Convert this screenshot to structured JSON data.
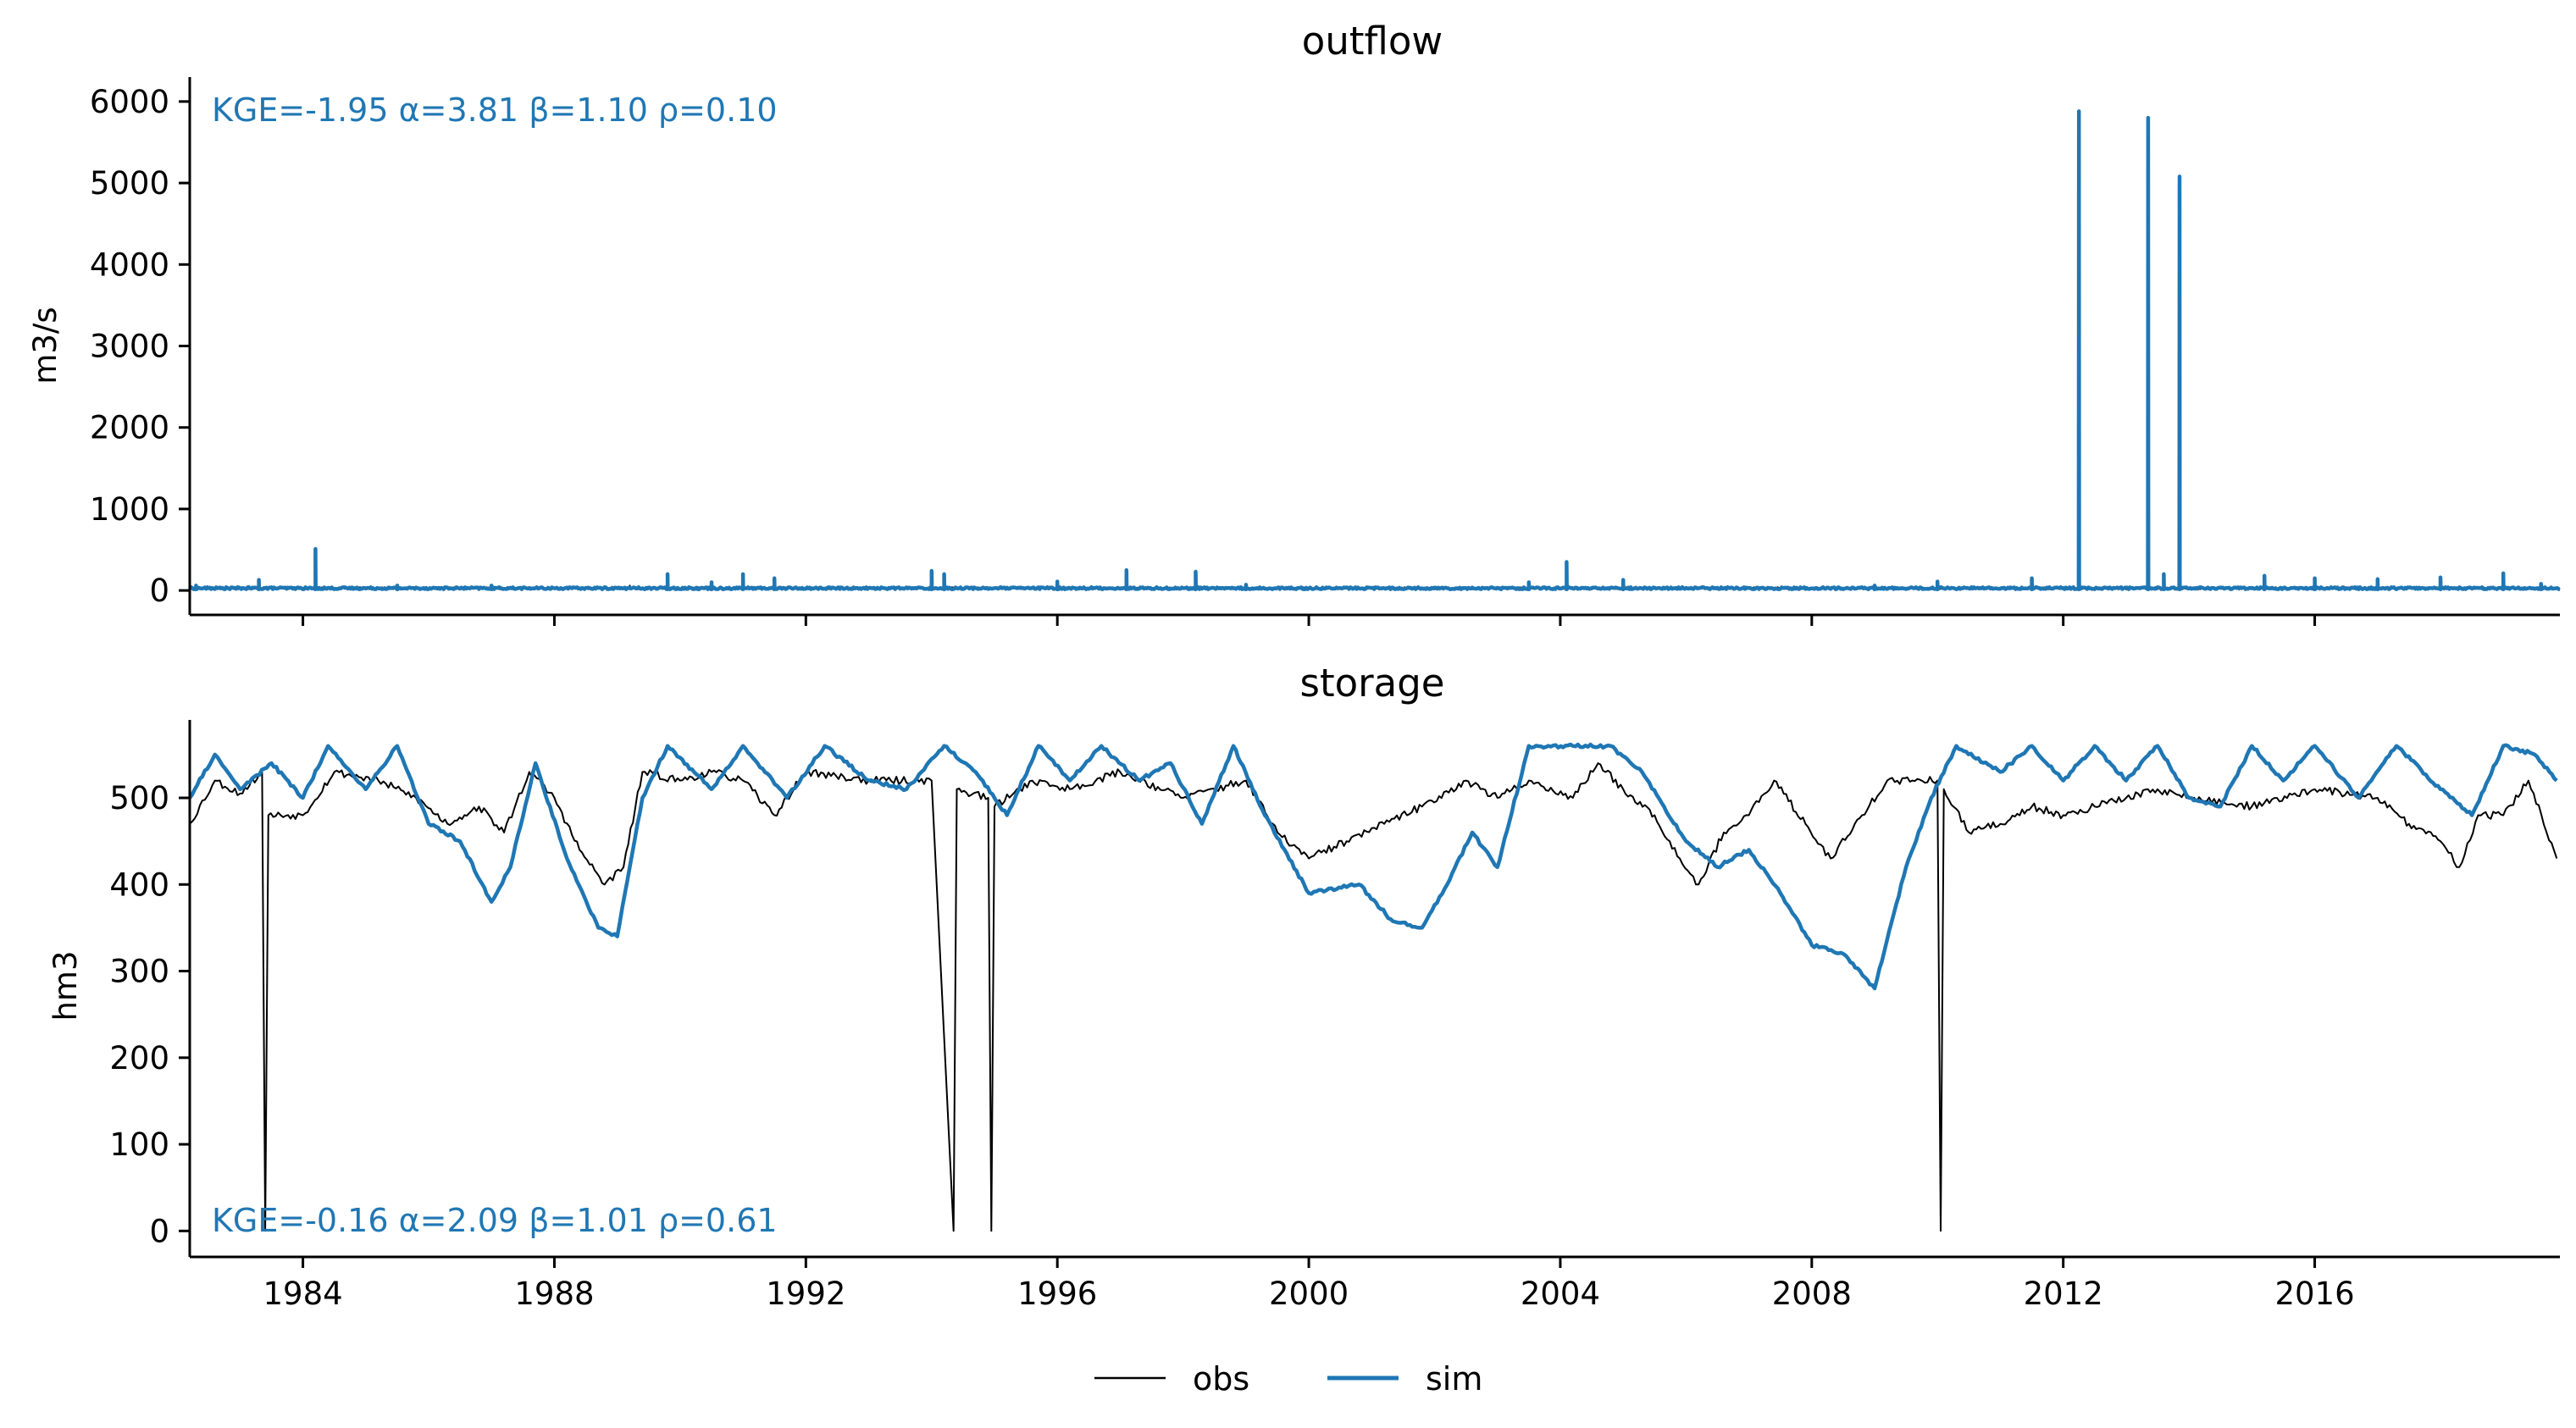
{
  "colors": {
    "obs": "#000000",
    "sim": "#1f77b4",
    "metric_text": "#1f77b4"
  },
  "chart_data": [
    {
      "type": "line",
      "title": "outflow",
      "ylabel": "m3/s",
      "xlabel": "",
      "xlim": [
        1982.2,
        2019.9
      ],
      "ylim": [
        -300,
        6300
      ],
      "yticks": [
        0,
        1000,
        2000,
        3000,
        4000,
        5000,
        6000
      ],
      "xticks": [
        1984,
        1988,
        1992,
        1996,
        2000,
        2004,
        2008,
        2012,
        2016
      ],
      "xtick_labels_visible": false,
      "grid": false,
      "metrics": "KGE=-1.95  α=3.81  β=1.10  ρ=0.10",
      "series": [
        {
          "name": "obs",
          "base": 15,
          "points": [
            [
              1983.3,
              20
            ],
            [
              1984.2,
              40
            ],
            [
              1985.5,
              20
            ],
            [
              1988.1,
              25
            ],
            [
              1989.2,
              60
            ],
            [
              1991.0,
              40
            ],
            [
              1994.0,
              35
            ],
            [
              1994.8,
              30
            ],
            [
              1996.5,
              25
            ],
            [
              1999.0,
              25
            ],
            [
              2002.0,
              25
            ],
            [
              2004.5,
              30
            ],
            [
              2009.0,
              45
            ],
            [
              2010.0,
              30
            ],
            [
              2012.0,
              35
            ],
            [
              2013.0,
              40
            ],
            [
              2015.0,
              40
            ],
            [
              2018.0,
              35
            ],
            [
              2019.5,
              30
            ]
          ]
        },
        {
          "name": "sim",
          "base": 15,
          "points": [
            [
              1982.3,
              60
            ],
            [
              1983.3,
              130
            ],
            [
              1984.2,
              510
            ],
            [
              1985.5,
              60
            ],
            [
              1987.0,
              60
            ],
            [
              1989.8,
              200
            ],
            [
              1990.5,
              100
            ],
            [
              1991.0,
              200
            ],
            [
              1991.5,
              150
            ],
            [
              1994.0,
              240
            ],
            [
              1994.2,
              200
            ],
            [
              1996.0,
              110
            ],
            [
              1997.1,
              250
            ],
            [
              1998.2,
              230
            ],
            [
              1999.0,
              70
            ],
            [
              2003.5,
              100
            ],
            [
              2004.1,
              350
            ],
            [
              2005.0,
              130
            ],
            [
              2009.0,
              60
            ],
            [
              2010.0,
              110
            ],
            [
              2011.5,
              150
            ],
            [
              2012.25,
              5880
            ],
            [
              2013.35,
              5800
            ],
            [
              2013.85,
              5080
            ],
            [
              2013.6,
              200
            ],
            [
              2015.2,
              180
            ],
            [
              2016.0,
              150
            ],
            [
              2017.0,
              140
            ],
            [
              2018.0,
              160
            ],
            [
              2019.0,
              210
            ],
            [
              2019.6,
              80
            ]
          ]
        }
      ]
    },
    {
      "type": "line",
      "title": "storage",
      "ylabel": "hm3",
      "xlabel": "",
      "xlim": [
        1982.2,
        2019.9
      ],
      "ylim": [
        -30,
        590
      ],
      "yticks": [
        0,
        100,
        200,
        300,
        400,
        500
      ],
      "xticks": [
        1984,
        1988,
        1992,
        1996,
        2000,
        2004,
        2008,
        2012,
        2016
      ],
      "xtick_labels": [
        "1984",
        "1988",
        "1992",
        "1996",
        "2000",
        "2004",
        "2008",
        "2012",
        "2016"
      ],
      "grid": false,
      "metrics": "KGE=-0.16  α=2.09  β=1.01  ρ=0.61",
      "series": [
        {
          "name": "obs",
          "points": [
            [
              1982.2,
              470
            ],
            [
              1982.6,
              520
            ],
            [
              1983.0,
              505
            ],
            [
              1983.35,
              530
            ],
            [
              1983.4,
              0
            ],
            [
              1983.45,
              480
            ],
            [
              1984.0,
              480
            ],
            [
              1984.5,
              530
            ],
            [
              1985.2,
              520
            ],
            [
              1985.8,
              500
            ],
            [
              1986.3,
              470
            ],
            [
              1986.8,
              490
            ],
            [
              1987.2,
              460
            ],
            [
              1987.6,
              530
            ],
            [
              1988.0,
              500
            ],
            [
              1988.4,
              440
            ],
            [
              1988.8,
              400
            ],
            [
              1989.1,
              420
            ],
            [
              1989.4,
              530
            ],
            [
              1990.0,
              520
            ],
            [
              1990.5,
              530
            ],
            [
              1991.0,
              520
            ],
            [
              1991.5,
              480
            ],
            [
              1992.0,
              530
            ],
            [
              1993.0,
              520
            ],
            [
              1994.0,
              520
            ],
            [
              1994.35,
              0
            ],
            [
              1994.4,
              510
            ],
            [
              1994.9,
              500
            ],
            [
              1994.95,
              0
            ],
            [
              1995.0,
              490
            ],
            [
              1995.6,
              520
            ],
            [
              1996.2,
              510
            ],
            [
              1997.0,
              530
            ],
            [
              1998.0,
              500
            ],
            [
              1999.0,
              520
            ],
            [
              1999.5,
              460
            ],
            [
              2000.0,
              430
            ],
            [
              2000.6,
              450
            ],
            [
              2001.2,
              470
            ],
            [
              2001.8,
              490
            ],
            [
              2002.5,
              520
            ],
            [
              2003.0,
              500
            ],
            [
              2003.5,
              520
            ],
            [
              2004.2,
              500
            ],
            [
              2004.6,
              540
            ],
            [
              2005.0,
              510
            ],
            [
              2005.5,
              480
            ],
            [
              2005.9,
              430
            ],
            [
              2006.2,
              400
            ],
            [
              2006.6,
              460
            ],
            [
              2007.0,
              480
            ],
            [
              2007.4,
              520
            ],
            [
              2007.9,
              470
            ],
            [
              2008.3,
              430
            ],
            [
              2008.8,
              480
            ],
            [
              2009.2,
              520
            ],
            [
              2009.6,
              520
            ],
            [
              2010.0,
              520
            ],
            [
              2010.05,
              0
            ],
            [
              2010.1,
              510
            ],
            [
              2010.5,
              460
            ],
            [
              2011.0,
              470
            ],
            [
              2011.5,
              490
            ],
            [
              2012.0,
              480
            ],
            [
              2012.5,
              490
            ],
            [
              2013.0,
              500
            ],
            [
              2013.5,
              510
            ],
            [
              2014.0,
              500
            ],
            [
              2015.0,
              490
            ],
            [
              2016.0,
              510
            ],
            [
              2017.0,
              500
            ],
            [
              2017.5,
              470
            ],
            [
              2018.0,
              450
            ],
            [
              2018.3,
              420
            ],
            [
              2018.6,
              480
            ],
            [
              2019.0,
              480
            ],
            [
              2019.4,
              520
            ],
            [
              2019.85,
              430
            ]
          ]
        },
        {
          "name": "sim",
          "points": [
            [
              1982.2,
              500
            ],
            [
              1982.6,
              550
            ],
            [
              1983.0,
              510
            ],
            [
              1983.5,
              540
            ],
            [
              1984.0,
              500
            ],
            [
              1984.4,
              560
            ],
            [
              1985.0,
              510
            ],
            [
              1985.5,
              560
            ],
            [
              1986.0,
              470
            ],
            [
              1986.5,
              450
            ],
            [
              1987.0,
              380
            ],
            [
              1987.3,
              420
            ],
            [
              1987.7,
              540
            ],
            [
              1988.2,
              430
            ],
            [
              1988.7,
              350
            ],
            [
              1989.0,
              340
            ],
            [
              1989.4,
              500
            ],
            [
              1989.8,
              560
            ],
            [
              1990.5,
              510
            ],
            [
              1991.0,
              560
            ],
            [
              1991.7,
              500
            ],
            [
              1992.3,
              560
            ],
            [
              1993.0,
              520
            ],
            [
              1993.6,
              510
            ],
            [
              1994.2,
              560
            ],
            [
              1994.7,
              530
            ],
            [
              1995.2,
              480
            ],
            [
              1995.7,
              560
            ],
            [
              1996.2,
              520
            ],
            [
              1996.7,
              560
            ],
            [
              1997.3,
              520
            ],
            [
              1997.8,
              540
            ],
            [
              1998.3,
              470
            ],
            [
              1998.8,
              560
            ],
            [
              1999.3,
              480
            ],
            [
              2000.0,
              390
            ],
            [
              2000.8,
              400
            ],
            [
              2001.3,
              360
            ],
            [
              2001.8,
              350
            ],
            [
              2002.2,
              400
            ],
            [
              2002.6,
              460
            ],
            [
              2003.0,
              420
            ],
            [
              2003.5,
              560
            ],
            [
              2004.2,
              560
            ],
            [
              2004.8,
              560
            ],
            [
              2005.3,
              530
            ],
            [
              2006.0,
              450
            ],
            [
              2006.5,
              420
            ],
            [
              2007.0,
              440
            ],
            [
              2007.5,
              390
            ],
            [
              2008.0,
              330
            ],
            [
              2008.5,
              320
            ],
            [
              2009.0,
              280
            ],
            [
              2009.5,
              420
            ],
            [
              2009.9,
              500
            ],
            [
              2010.3,
              560
            ],
            [
              2011.0,
              530
            ],
            [
              2011.5,
              560
            ],
            [
              2012.0,
              520
            ],
            [
              2012.5,
              560
            ],
            [
              2013.0,
              520
            ],
            [
              2013.5,
              560
            ],
            [
              2014.0,
              500
            ],
            [
              2014.5,
              490
            ],
            [
              2015.0,
              560
            ],
            [
              2015.5,
              520
            ],
            [
              2016.0,
              560
            ],
            [
              2016.7,
              500
            ],
            [
              2017.3,
              560
            ],
            [
              2018.0,
              510
            ],
            [
              2018.5,
              480
            ],
            [
              2019.0,
              560
            ],
            [
              2019.5,
              550
            ],
            [
              2019.85,
              520
            ]
          ]
        }
      ]
    }
  ],
  "legend": {
    "placement": "bottom-center",
    "entries": [
      "obs",
      "sim"
    ]
  }
}
